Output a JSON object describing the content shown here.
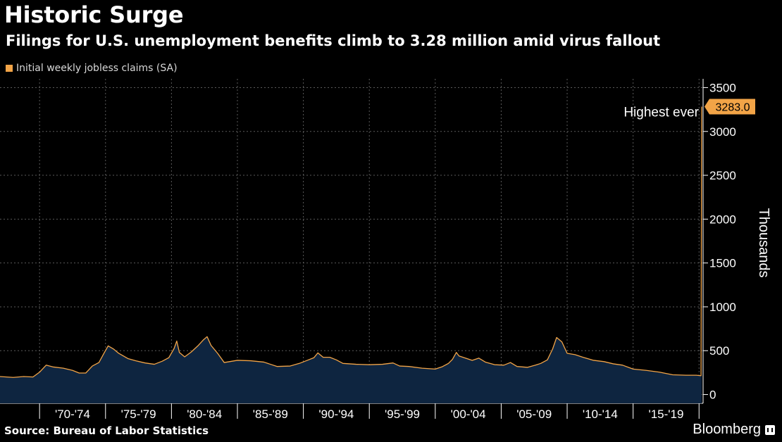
{
  "header": {
    "title": "Historic Surge",
    "subtitle": "Filings for U.S. unemployment benefits climb to 3.28 million amid virus fallout"
  },
  "footer": {
    "source": "Source: Bureau of Labor Statistics",
    "brand": "Bloomberg"
  },
  "colors": {
    "background": "#000000",
    "line": "#f2a447",
    "area": "#0e2540",
    "grid": "#5a5a5a",
    "label_bg": "#f2a447"
  },
  "chart_data": {
    "type": "area",
    "title": "Historic Surge",
    "subtitle": "Filings for U.S. unemployment benefits climb to 3.28 million amid virus fallout",
    "series": [
      {
        "name": "Initial weekly jobless claims (SA)",
        "x": [
          1967.0,
          1968.0,
          1968.8,
          1969.5,
          1970.0,
          1970.5,
          1971.0,
          1971.8,
          1972.5,
          1973.0,
          1973.5,
          1974.0,
          1974.5,
          1974.9,
          1975.2,
          1975.6,
          1976.0,
          1976.7,
          1977.3,
          1978.0,
          1978.7,
          1979.3,
          1979.8,
          1980.2,
          1980.4,
          1980.6,
          1981.0,
          1981.5,
          1982.0,
          1982.4,
          1982.7,
          1983.0,
          1983.5,
          1984.0,
          1985.0,
          1986.0,
          1987.0,
          1988.0,
          1989.0,
          1989.7,
          1990.3,
          1990.8,
          1991.1,
          1991.5,
          1992.0,
          1992.5,
          1993.0,
          1994.0,
          1995.0,
          1996.0,
          1996.8,
          1997.3,
          1998.0,
          1999.0,
          2000.0,
          2000.5,
          2001.0,
          2001.3,
          2001.6,
          2001.8,
          2002.2,
          2002.8,
          2003.3,
          2003.8,
          2004.5,
          2005.2,
          2005.7,
          2006.2,
          2007.0,
          2007.6,
          2008.0,
          2008.5,
          2008.9,
          2009.2,
          2009.6,
          2010.0,
          2010.6,
          2011.2,
          2012.0,
          2012.8,
          2013.5,
          2014.2,
          2015.0,
          2016.0,
          2017.0,
          2018.0,
          2019.0,
          2019.8,
          2020.1,
          2020.15,
          2020.2
        ],
        "values": [
          205,
          195,
          205,
          200,
          255,
          335,
          315,
          300,
          275,
          245,
          245,
          325,
          365,
          475,
          555,
          520,
          470,
          410,
          385,
          360,
          345,
          380,
          420,
          525,
          610,
          480,
          430,
          485,
          555,
          620,
          660,
          560,
          470,
          365,
          390,
          385,
          370,
          320,
          325,
          355,
          390,
          420,
          475,
          425,
          425,
          395,
          355,
          345,
          340,
          345,
          360,
          325,
          320,
          300,
          290,
          315,
          355,
          400,
          480,
          440,
          420,
          390,
          415,
          370,
          340,
          335,
          365,
          320,
          310,
          335,
          355,
          395,
          520,
          650,
          600,
          470,
          455,
          425,
          390,
          375,
          350,
          335,
          290,
          275,
          255,
          225,
          220,
          220,
          215,
          215,
          3283
        ]
      }
    ],
    "xlabel": "",
    "ylabel": "Thousands",
    "xlim": [
      1967.0,
      2020.2
    ],
    "ylim": [
      -100,
      3600
    ],
    "yticks": [
      0,
      500,
      1000,
      1500,
      2000,
      2500,
      3000,
      3500
    ],
    "ytick_labels": [
      "0",
      "500",
      "1000",
      "1500",
      "2000",
      "2500",
      "3000",
      "3500"
    ],
    "xtick_boundaries": [
      1970,
      1975,
      1980,
      1985,
      1990,
      1995,
      2000,
      2005,
      2010,
      2015,
      2020
    ],
    "xtick_labels": [
      "'70-'74",
      "'75-'79",
      "'80-'84",
      "'85-'89",
      "'90-'94",
      "'95-'99",
      "'00-'04",
      "'05-'09",
      "'10-'14",
      "'15-'19"
    ],
    "annotation": {
      "text": "Highest ever",
      "value_label": "3283.0",
      "value": 3283
    },
    "legend_position": "top-left",
    "grid": true
  }
}
